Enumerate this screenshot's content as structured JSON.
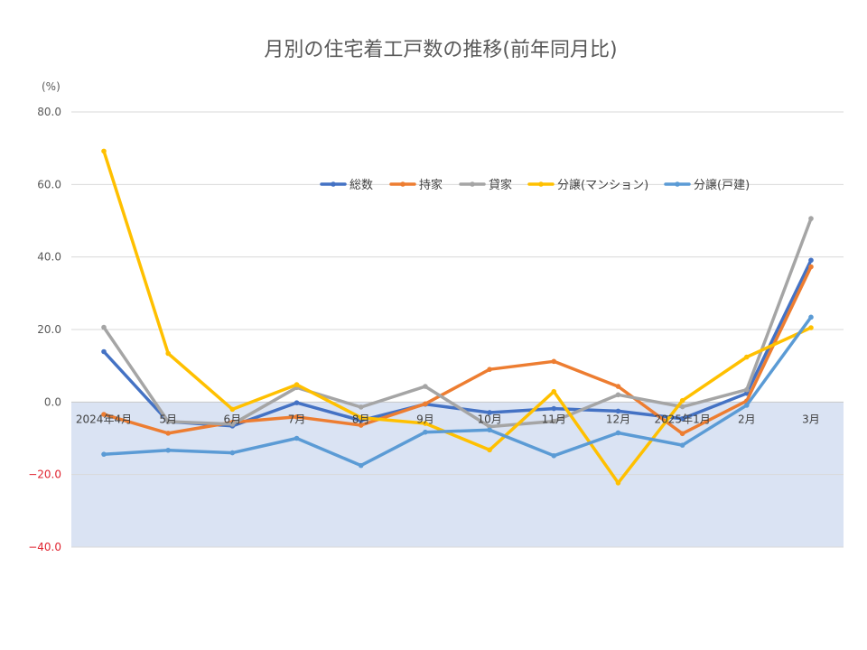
{
  "chart_data": {
    "type": "line",
    "title": "月別の住宅着工戸数の推移(前年同月比)",
    "unit_label": "(%)",
    "ylim": [
      -40,
      80
    ],
    "y_ticks": [
      "80.0",
      "60.0",
      "40.0",
      "20.0",
      "0.0",
      "−20.0",
      "−40.0"
    ],
    "y_tick_values": [
      80,
      60,
      40,
      20,
      0,
      -20,
      -40
    ],
    "grid": true,
    "negative_region_fill": "#dae3f3",
    "legend_position": "top-right",
    "categories": [
      "2024年4月",
      "5月",
      "6月",
      "7月",
      "8月",
      "9月",
      "10月",
      "11月",
      "12月",
      "2025年1月",
      "2月",
      "3月"
    ],
    "series": [
      {
        "name": "総数",
        "color": "#4472c4",
        "values": [
          13.9,
          -5.4,
          -6.6,
          -0.2,
          -5.1,
          -0.6,
          -2.9,
          -1.8,
          -2.5,
          -4.6,
          2.4,
          39.1
        ]
      },
      {
        "name": "持家",
        "color": "#ed7d31",
        "values": [
          -3.4,
          -8.6,
          -5.6,
          -4.1,
          -6.4,
          -0.5,
          9.0,
          11.2,
          4.3,
          -8.7,
          0.3,
          37.3
        ]
      },
      {
        "name": "貸家",
        "color": "#a5a5a5",
        "values": [
          20.6,
          -5.4,
          -6.1,
          4.0,
          -1.4,
          4.3,
          -6.8,
          -5.3,
          2.0,
          -1.3,
          3.4,
          50.6
        ]
      },
      {
        "name": "分譲(マンション)",
        "color": "#ffc000",
        "values": [
          69.2,
          13.4,
          -2.0,
          4.8,
          -4.3,
          -5.9,
          -13.2,
          2.9,
          -22.3,
          0.4,
          12.4,
          20.5
        ]
      },
      {
        "name": "分譲(戸建)",
        "color": "#5b9bd5",
        "values": [
          -14.4,
          -13.3,
          -14.0,
          -10.0,
          -17.5,
          -8.3,
          -7.7,
          -14.8,
          -8.5,
          -11.9,
          -0.9,
          23.4
        ]
      }
    ]
  }
}
